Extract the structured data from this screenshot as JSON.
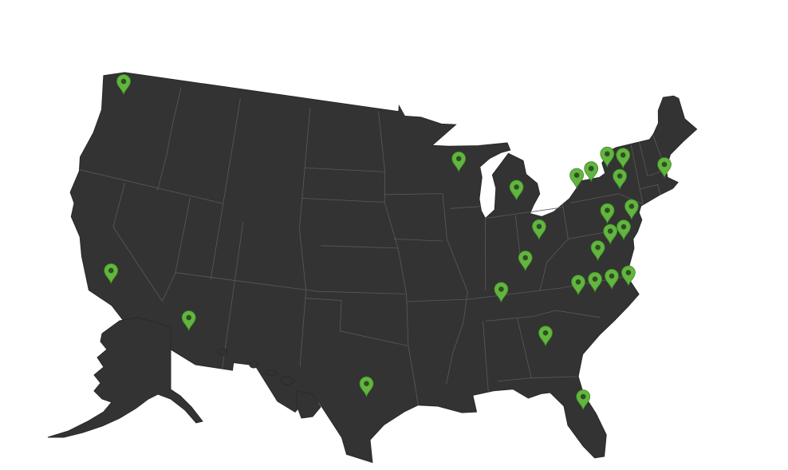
{
  "map": {
    "region": "United States",
    "land_color": "#333333",
    "background_color": "#ffffff",
    "marker_icon": "map-pin-icon",
    "marker_color": "#62b53f",
    "marker_center_color": "#2f4f22",
    "markers": [
      {
        "lat": 47.6,
        "lon": -122.3
      },
      {
        "lat": 35.4,
        "lon": -119.0
      },
      {
        "lat": 33.45,
        "lon": -112.07
      },
      {
        "lat": 30.27,
        "lon": -97.74
      },
      {
        "lat": 44.9,
        "lon": -89.6
      },
      {
        "lat": 42.7,
        "lon": -84.55
      },
      {
        "lat": 39.96,
        "lon": -83.0
      },
      {
        "lat": 38.04,
        "lon": -84.5
      },
      {
        "lat": 36.16,
        "lon": -86.78
      },
      {
        "lat": 33.0,
        "lon": -83.6
      },
      {
        "lat": 28.5,
        "lon": -81.4
      },
      {
        "lat": 36.0,
        "lon": -80.4
      },
      {
        "lat": 36.0,
        "lon": -79.0
      },
      {
        "lat": 36.0,
        "lon": -77.6
      },
      {
        "lat": 36.0,
        "lon": -76.2
      },
      {
        "lat": 38.0,
        "lon": -78.3
      },
      {
        "lat": 38.9,
        "lon": -77.0
      },
      {
        "lat": 39.0,
        "lon": -75.8
      },
      {
        "lat": 40.27,
        "lon": -76.9
      },
      {
        "lat": 40.2,
        "lon": -74.76
      },
      {
        "lat": 42.9,
        "lon": -79.0
      },
      {
        "lat": 43.16,
        "lon": -77.6
      },
      {
        "lat": 43.9,
        "lon": -75.9
      },
      {
        "lat": 43.6,
        "lon": -74.5
      },
      {
        "lat": 42.3,
        "lon": -75.2
      },
      {
        "lat": 42.36,
        "lon": -71.06
      }
    ]
  }
}
